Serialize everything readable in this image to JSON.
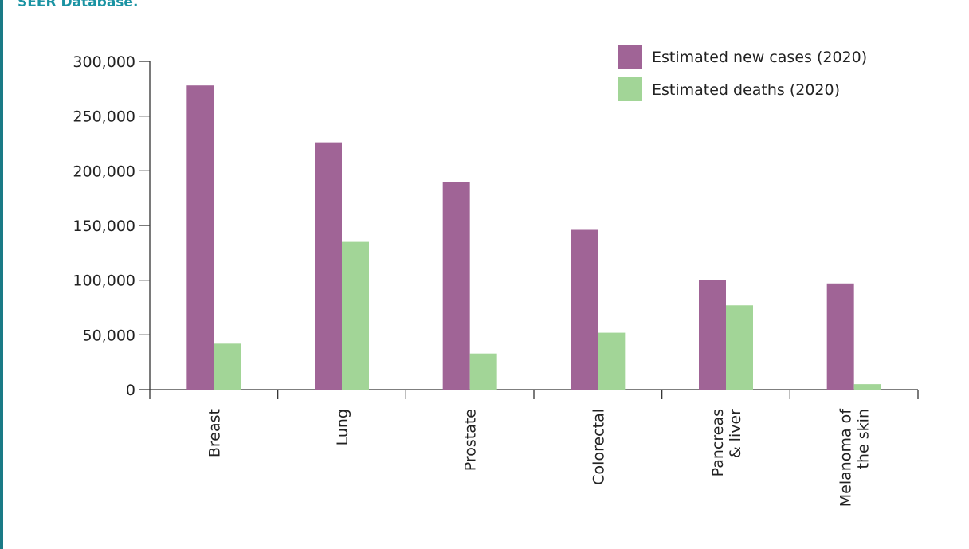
{
  "caption": "SEER Database.",
  "colors": {
    "frame": "#1a7a86",
    "caption": "#1a93a3",
    "new_cases": "#a06496",
    "deaths": "#a2d597",
    "axis": "#333333",
    "text": "#222222"
  },
  "chart_data": {
    "type": "bar",
    "categories": [
      [
        "Breast"
      ],
      [
        "Lung"
      ],
      [
        "Prostate"
      ],
      [
        "Colorectal"
      ],
      [
        "Pancreas",
        "& liver"
      ],
      [
        "Melanoma of",
        "the skin"
      ]
    ],
    "series": [
      {
        "name": "Estimated new cases (2020)",
        "color": "#a06496",
        "values": [
          278000,
          226000,
          190000,
          146000,
          100000,
          97000
        ]
      },
      {
        "name": "Estimated deaths (2020)",
        "color": "#a2d597",
        "values": [
          42000,
          135000,
          33000,
          52000,
          77000,
          5000
        ]
      }
    ],
    "yticks": [
      0,
      50000,
      100000,
      150000,
      200000,
      250000,
      300000
    ],
    "ytick_labels": [
      "0",
      "50,000",
      "100,000",
      "150,000",
      "200,000",
      "250,000",
      "300,000"
    ],
    "ylim": [
      0,
      300000
    ],
    "legend_position": "top-right",
    "grid": false
  }
}
